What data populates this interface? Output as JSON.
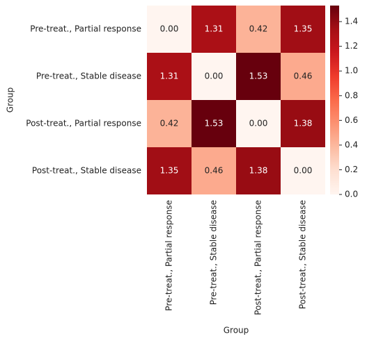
{
  "chart_data": {
    "type": "heatmap",
    "x_categories": [
      "Pre-treat., Partial response",
      "Pre-treat., Stable disease",
      "Post-treat., Partial response",
      "Post-treat., Stable disease"
    ],
    "y_categories": [
      "Pre-treat., Partial response",
      "Pre-treat., Stable disease",
      "Post-treat., Partial response",
      "Post-treat., Stable disease"
    ],
    "values": [
      [
        0,
        1.31,
        0.42,
        1.35
      ],
      [
        1.31,
        0,
        1.53,
        0.46
      ],
      [
        0.42,
        1.53,
        0,
        1.38
      ],
      [
        1.35,
        0.46,
        1.38,
        0
      ]
    ],
    "value_labels": [
      [
        "0.00",
        "1.31",
        "0.42",
        "1.35"
      ],
      [
        "1.31",
        "0.00",
        "1.53",
        "0.46"
      ],
      [
        "0.42",
        "1.53",
        "0.00",
        "1.38"
      ],
      [
        "1.35",
        "0.46",
        "1.38",
        "0.00"
      ]
    ],
    "xlabel": "Group",
    "ylabel": "Group",
    "colormap": "Reds",
    "zlim": [
      0,
      1.53
    ],
    "zticks": [
      {
        "value": 0,
        "label": "0.0"
      },
      0.2,
      0.4,
      0.6,
      0.8,
      {
        "value": 1,
        "label": "1.0"
      },
      1.2,
      1.4
    ]
  }
}
